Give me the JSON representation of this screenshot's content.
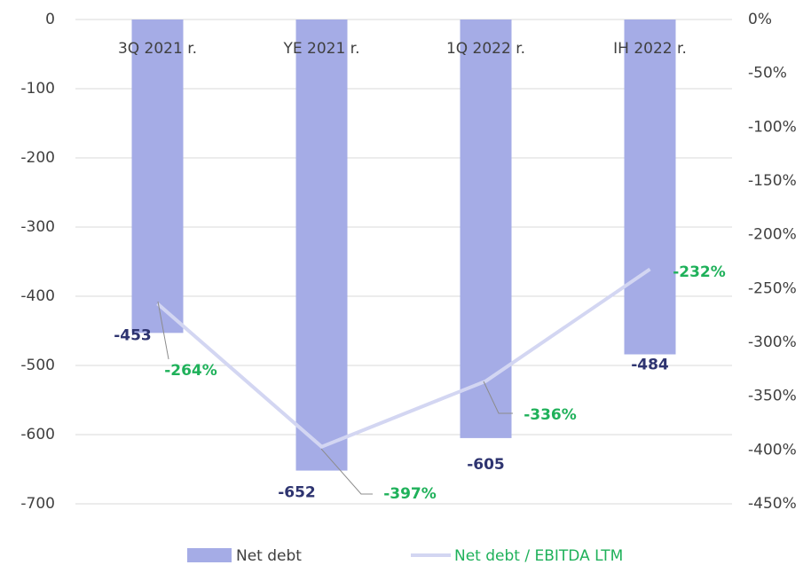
{
  "chart_data": {
    "type": "bar_line",
    "categories": [
      "3Q 2021 r.",
      "YE 2021 r.",
      "1Q 2022 r.",
      "IH 2022 r."
    ],
    "series": [
      {
        "name": "Net debt",
        "color": "#a5ace6",
        "values": [
          -453,
          -652,
          -605,
          -484
        ]
      },
      {
        "name": "Net debt / EBITDA LTM",
        "color": "#d3d6f2",
        "axis": "y2",
        "values": [
          -264,
          -397,
          -336,
          -232
        ],
        "value_labels": [
          "-264%",
          "-397%",
          "-336%",
          "-232%"
        ]
      }
    ],
    "ylim": [
      0,
      -700
    ],
    "yticks": [
      0,
      -100,
      -200,
      -300,
      -400,
      -500,
      -600,
      -700
    ],
    "y2lim": [
      0,
      -450
    ],
    "y2ticks": [
      {
        "value": 0,
        "label": "0%"
      },
      {
        "value": -50,
        "label": "-50%"
      },
      {
        "value": -100,
        "label": "-100%"
      },
      {
        "value": -150,
        "label": "-150%"
      },
      {
        "value": -200,
        "label": "-200%"
      },
      {
        "value": -250,
        "label": "-250%"
      },
      {
        "value": -300,
        "label": "-300%"
      },
      {
        "value": -350,
        "label": "-350%"
      },
      {
        "value": -400,
        "label": "-400%"
      },
      {
        "value": -450,
        "label": "-450%"
      }
    ],
    "grid": true,
    "legend": "bottom"
  }
}
